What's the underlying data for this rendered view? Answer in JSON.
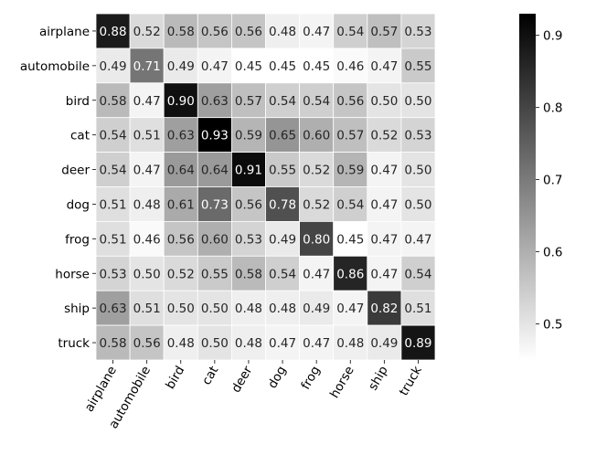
{
  "chart_data": {
    "type": "heatmap",
    "title": "",
    "xlabel": "",
    "ylabel": "",
    "row_labels": [
      "airplane",
      "automobile",
      "bird",
      "cat",
      "deer",
      "dog",
      "frog",
      "horse",
      "ship",
      "truck"
    ],
    "col_labels": [
      "airplane",
      "automobile",
      "bird",
      "cat",
      "deer",
      "dog",
      "frog",
      "horse",
      "ship",
      "truck"
    ],
    "values": [
      [
        0.88,
        0.52,
        0.58,
        0.56,
        0.56,
        0.48,
        0.47,
        0.54,
        0.57,
        0.53
      ],
      [
        0.49,
        0.71,
        0.49,
        0.47,
        0.45,
        0.45,
        0.45,
        0.46,
        0.47,
        0.55
      ],
      [
        0.58,
        0.47,
        0.9,
        0.63,
        0.57,
        0.54,
        0.54,
        0.56,
        0.5,
        0.5
      ],
      [
        0.54,
        0.51,
        0.63,
        0.93,
        0.59,
        0.65,
        0.6,
        0.57,
        0.52,
        0.53
      ],
      [
        0.54,
        0.47,
        0.64,
        0.64,
        0.91,
        0.55,
        0.52,
        0.59,
        0.47,
        0.5
      ],
      [
        0.51,
        0.48,
        0.61,
        0.73,
        0.56,
        0.78,
        0.52,
        0.54,
        0.47,
        0.5
      ],
      [
        0.51,
        0.46,
        0.56,
        0.6,
        0.53,
        0.49,
        0.8,
        0.45,
        0.47,
        0.47
      ],
      [
        0.53,
        0.5,
        0.52,
        0.55,
        0.58,
        0.54,
        0.47,
        0.86,
        0.47,
        0.54
      ],
      [
        0.63,
        0.51,
        0.5,
        0.5,
        0.48,
        0.48,
        0.49,
        0.47,
        0.82,
        0.51
      ],
      [
        0.58,
        0.56,
        0.48,
        0.5,
        0.48,
        0.47,
        0.47,
        0.48,
        0.49,
        0.89
      ]
    ],
    "colormap": "Greys",
    "color_range": [
      0.45,
      0.93
    ],
    "colorbar_ticks": [
      0.5,
      0.6,
      0.7,
      0.8,
      0.9
    ],
    "colorbar_tick_labels": [
      "0.5",
      "0.6",
      "0.7",
      "0.8",
      "0.9"
    ],
    "value_format": "2 decimals",
    "grid": true,
    "legend": "colorbar-right"
  }
}
